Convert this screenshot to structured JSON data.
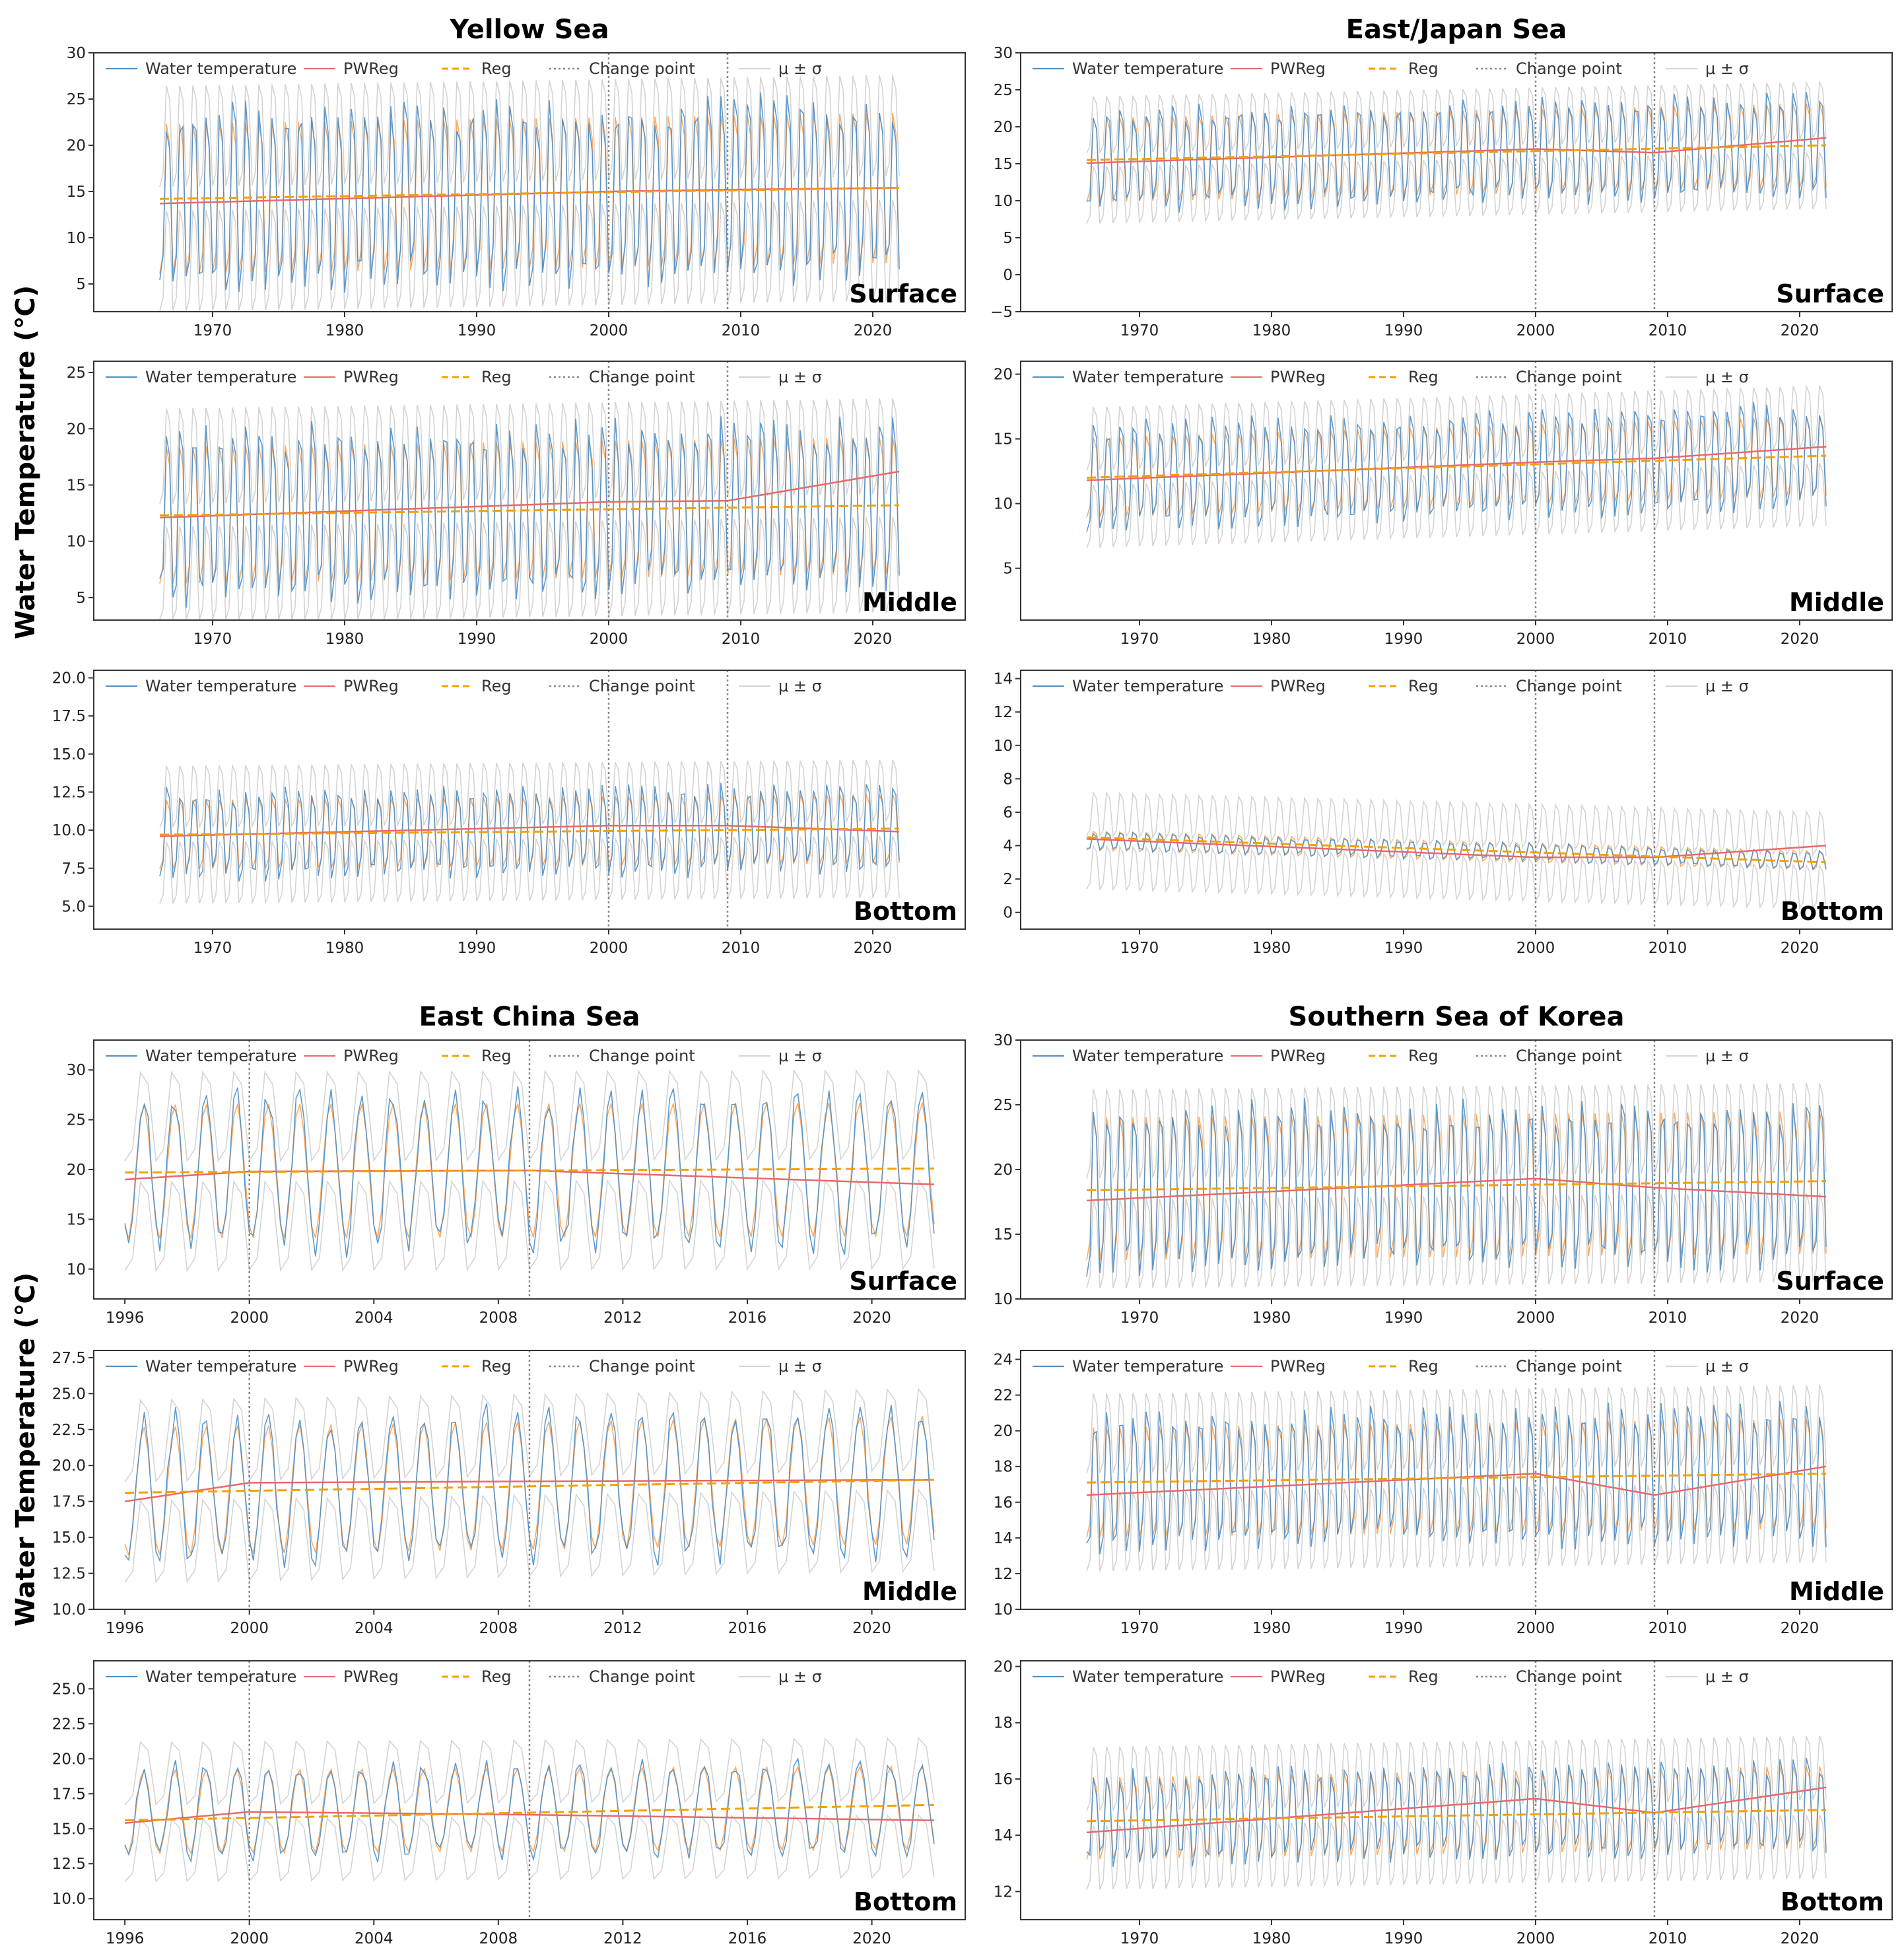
{
  "figure": {
    "ylabel": "Water Temperature (℃)",
    "legend": [
      "Water temperature",
      "PWReg",
      "Reg",
      "Change point",
      "μ ± σ"
    ],
    "colors": {
      "obs": "#4e8fc9",
      "pwreg": "#e8696a",
      "reg": "#f5a000",
      "band": "#d4d4d4",
      "fitted": "#ff9d45",
      "axis": "#333333",
      "changepoint": "#888888"
    }
  },
  "chart_data": [
    {
      "type": "line",
      "region": "Yellow Sea",
      "show_title": true,
      "depth": "Surface",
      "x_range": [
        1961,
        2027
      ],
      "ylim": [
        2,
        30
      ],
      "yticks": [
        5,
        10,
        15,
        20,
        25,
        30
      ],
      "ytick_labels": [
        "5",
        "10",
        "15",
        "20",
        "25",
        "30"
      ],
      "xticks": [
        1970,
        1980,
        1990,
        2000,
        2010,
        2020
      ],
      "xtick_labels": [
        "1970",
        "1980",
        "1990",
        "2000",
        "2010",
        "2020"
      ],
      "change_points": [
        2000,
        2009
      ],
      "series": {
        "obs": {
          "start": 1966,
          "end": 2022,
          "mean": [
            14.2,
            15.4
          ],
          "amp": 10.8,
          "step": 0.25
        },
        "fitted": {
          "mean": [
            14.2,
            15.4
          ],
          "amp": 10.0
        },
        "band": {
          "mean": [
            14.2,
            15.4
          ],
          "amp": 13.5
        },
        "reg": [
          [
            1966,
            14.2
          ],
          [
            2022,
            15.4
          ]
        ],
        "pwreg": [
          [
            1966,
            13.7
          ],
          [
            2000,
            15.0
          ],
          [
            2009,
            15.2
          ],
          [
            2022,
            15.4
          ]
        ]
      }
    },
    {
      "type": "line",
      "region": "East/Japan Sea",
      "show_title": true,
      "depth": "Surface",
      "x_range": [
        1961,
        2027
      ],
      "ylim": [
        -5,
        30
      ],
      "yticks": [
        -5,
        0,
        5,
        10,
        15,
        20,
        25,
        30
      ],
      "ytick_labels": [
        "−5",
        "0",
        "5",
        "10",
        "15",
        "20",
        "25",
        "30"
      ],
      "xticks": [
        1970,
        1980,
        1990,
        2000,
        2010,
        2020
      ],
      "xtick_labels": [
        "1970",
        "1980",
        "1990",
        "2000",
        "2010",
        "2020"
      ],
      "change_points": [
        2000,
        2009
      ],
      "series": {
        "obs": {
          "start": 1966,
          "end": 2022,
          "mean": [
            15.5,
            17.5
          ],
          "amp": 7.5,
          "step": 0.25
        },
        "fitted": {
          "mean": [
            15.5,
            17.5
          ],
          "amp": 7.0
        },
        "band": {
          "mean": [
            15.5,
            17.5
          ],
          "amp": 9.5
        },
        "reg": [
          [
            1966,
            15.5
          ],
          [
            2022,
            17.5
          ]
        ],
        "pwreg": [
          [
            1966,
            15.1
          ],
          [
            2000,
            17.0
          ],
          [
            2009,
            16.5
          ],
          [
            2022,
            18.5
          ]
        ]
      }
    },
    {
      "type": "line",
      "region": "Yellow Sea",
      "show_title": false,
      "depth": "Middle",
      "x_range": [
        1961,
        2027
      ],
      "ylim": [
        3,
        26
      ],
      "yticks": [
        5,
        10,
        15,
        20,
        25
      ],
      "ytick_labels": [
        "5",
        "10",
        "15",
        "20",
        "25"
      ],
      "xticks": [
        1970,
        1980,
        1990,
        2000,
        2010,
        2020
      ],
      "xtick_labels": [
        "1970",
        "1980",
        "1990",
        "2000",
        "2010",
        "2020"
      ],
      "change_points": [
        2000,
        2009
      ],
      "series": {
        "obs": {
          "start": 1966,
          "end": 2022,
          "mean": [
            12.3,
            13.2
          ],
          "amp": 8.5,
          "step": 0.25
        },
        "fitted": {
          "mean": [
            12.3,
            13.2
          ],
          "amp": 7.5
        },
        "band": {
          "mean": [
            12.3,
            13.2
          ],
          "amp": 10.5
        },
        "reg": [
          [
            1966,
            12.3
          ],
          [
            2022,
            13.2
          ]
        ],
        "pwreg": [
          [
            1966,
            12.1
          ],
          [
            2000,
            13.5
          ],
          [
            2009,
            13.6
          ],
          [
            2022,
            16.2
          ]
        ]
      }
    },
    {
      "type": "line",
      "region": "East/Japan Sea",
      "show_title": false,
      "depth": "Middle",
      "x_range": [
        1961,
        2027
      ],
      "ylim": [
        1,
        21
      ],
      "yticks": [
        5,
        10,
        15,
        20
      ],
      "ytick_labels": [
        "5",
        "10",
        "15",
        "20"
      ],
      "xticks": [
        1970,
        1980,
        1990,
        2000,
        2010,
        2020
      ],
      "xtick_labels": [
        "1970",
        "1980",
        "1990",
        "2000",
        "2010",
        "2020"
      ],
      "change_points": [
        2000,
        2009
      ],
      "series": {
        "obs": {
          "start": 1966,
          "end": 2022,
          "mean": [
            12.0,
            13.7
          ],
          "amp": 4.5,
          "step": 0.25
        },
        "fitted": {
          "mean": [
            12.0,
            13.7
          ],
          "amp": 3.8
        },
        "band": {
          "mean": [
            12.0,
            13.7
          ],
          "amp": 6.0
        },
        "reg": [
          [
            1966,
            12.0
          ],
          [
            2022,
            13.7
          ]
        ],
        "pwreg": [
          [
            1966,
            11.8
          ],
          [
            2000,
            13.2
          ],
          [
            2009,
            13.5
          ],
          [
            2022,
            14.4
          ]
        ]
      }
    },
    {
      "type": "line",
      "region": "Yellow Sea",
      "show_title": false,
      "depth": "Bottom",
      "x_range": [
        1961,
        2027
      ],
      "ylim": [
        3.5,
        20.5
      ],
      "yticks": [
        5,
        7.5,
        10,
        12.5,
        15,
        17.5,
        20
      ],
      "ytick_labels": [
        "5.0",
        "7.5",
        "10.0",
        "12.5",
        "15.0",
        "17.5",
        "20.0"
      ],
      "xticks": [
        1970,
        1980,
        1990,
        2000,
        2010,
        2020
      ],
      "xtick_labels": [
        "1970",
        "1980",
        "1990",
        "2000",
        "2010",
        "2020"
      ],
      "change_points": [
        2000,
        2009
      ],
      "series": {
        "obs": {
          "start": 1966,
          "end": 2022,
          "mean": [
            9.7,
            10.1
          ],
          "amp": 3.2,
          "step": 0.25
        },
        "fitted": {
          "mean": [
            9.7,
            10.1
          ],
          "amp": 2.8
        },
        "band": {
          "mean": [
            9.7,
            10.1
          ],
          "amp": 5.0
        },
        "reg": [
          [
            1966,
            9.7
          ],
          [
            2022,
            10.1
          ]
        ],
        "pwreg": [
          [
            1966,
            9.6
          ],
          [
            2000,
            10.3
          ],
          [
            2009,
            10.3
          ],
          [
            2022,
            9.9
          ]
        ]
      }
    },
    {
      "type": "line",
      "region": "East/Japan Sea",
      "show_title": false,
      "depth": "Bottom",
      "x_range": [
        1961,
        2027
      ],
      "ylim": [
        -1,
        14.5
      ],
      "yticks": [
        0,
        2,
        4,
        6,
        8,
        10,
        12,
        14
      ],
      "ytick_labels": [
        "0",
        "2",
        "4",
        "6",
        "8",
        "10",
        "12",
        "14"
      ],
      "xticks": [
        1970,
        1980,
        1990,
        2000,
        2010,
        2020
      ],
      "xtick_labels": [
        "1970",
        "1980",
        "1990",
        "2000",
        "2010",
        "2020"
      ],
      "change_points": [
        2000,
        2009
      ],
      "series": {
        "obs": {
          "start": 1966,
          "end": 2022,
          "mean": [
            4.3,
            3.1
          ],
          "amp": 0.6,
          "step": 0.25
        },
        "fitted": {
          "mean": [
            4.3,
            3.1
          ],
          "amp": 0.7
        },
        "band": {
          "mean": [
            4.3,
            3.1
          ],
          "amp": 3.2
        },
        "reg": [
          [
            1966,
            4.5
          ],
          [
            2022,
            3.0
          ]
        ],
        "pwreg": [
          [
            1966,
            4.4
          ],
          [
            2000,
            3.3
          ],
          [
            2009,
            3.3
          ],
          [
            2022,
            4.0
          ]
        ]
      }
    },
    {
      "type": "line",
      "region": "East China Sea",
      "show_title": true,
      "depth": "Surface",
      "x_range": [
        1995,
        2023
      ],
      "ylim": [
        7,
        33
      ],
      "yticks": [
        10,
        15,
        20,
        25,
        30
      ],
      "ytick_labels": [
        "10",
        "15",
        "20",
        "25",
        "30"
      ],
      "xticks": [
        1996,
        2000,
        2004,
        2008,
        2012,
        2016,
        2020
      ],
      "xtick_labels": [
        "1996",
        "2000",
        "2004",
        "2008",
        "2012",
        "2016",
        "2020"
      ],
      "change_points": [
        2000,
        2009
      ],
      "series": {
        "obs": {
          "start": 1996,
          "end": 2022,
          "mean": [
            19.8,
            20.0
          ],
          "amp": 7.5,
          "step": 0.125
        },
        "fitted": {
          "mean": [
            19.8,
            20.0
          ],
          "amp": 6.8
        },
        "band": {
          "mean": [
            19.8,
            20.0
          ],
          "amp": 11.0
        },
        "reg": [
          [
            1996,
            19.7
          ],
          [
            2022,
            20.1
          ]
        ],
        "pwreg": [
          [
            1996,
            19.0
          ],
          [
            2000,
            19.8
          ],
          [
            2009,
            19.9
          ],
          [
            2022,
            18.5
          ]
        ]
      }
    },
    {
      "type": "line",
      "region": "Southern Sea of Korea",
      "show_title": true,
      "depth": "Surface",
      "x_range": [
        1961,
        2027
      ],
      "ylim": [
        10,
        30
      ],
      "yticks": [
        10,
        15,
        20,
        25,
        30
      ],
      "ytick_labels": [
        "10",
        "15",
        "20",
        "25",
        "30"
      ],
      "xticks": [
        1970,
        1980,
        1990,
        2000,
        2010,
        2020
      ],
      "xtick_labels": [
        "1970",
        "1980",
        "1990",
        "2000",
        "2010",
        "2020"
      ],
      "change_points": [
        2000,
        2009
      ],
      "series": {
        "obs": {
          "start": 1966,
          "end": 2022,
          "mean": [
            18.5,
            19.0
          ],
          "amp": 7.0,
          "step": 0.25
        },
        "fitted": {
          "mean": [
            18.5,
            19.0
          ],
          "amp": 6.8
        },
        "band": {
          "mean": [
            18.5,
            19.0
          ],
          "amp": 8.5
        },
        "reg": [
          [
            1966,
            18.4
          ],
          [
            2022,
            19.1
          ]
        ],
        "pwreg": [
          [
            1966,
            17.6
          ],
          [
            2000,
            19.3
          ],
          [
            2009,
            18.6
          ],
          [
            2022,
            17.9
          ]
        ]
      }
    },
    {
      "type": "line",
      "region": "East China Sea",
      "show_title": false,
      "depth": "Middle",
      "x_range": [
        1995,
        2023
      ],
      "ylim": [
        10,
        28
      ],
      "yticks": [
        10,
        12.5,
        15,
        17.5,
        20,
        22.5,
        25,
        27.5
      ],
      "ytick_labels": [
        "10.0",
        "12.5",
        "15.0",
        "17.5",
        "20.0",
        "22.5",
        "25.0",
        "27.5"
      ],
      "xticks": [
        1996,
        2000,
        2004,
        2008,
        2012,
        2016,
        2020
      ],
      "xtick_labels": [
        "1996",
        "2000",
        "2004",
        "2008",
        "2012",
        "2016",
        "2020"
      ],
      "change_points": [
        2000,
        2009
      ],
      "series": {
        "obs": {
          "start": 1996,
          "end": 2022,
          "mean": [
            18.2,
            19.0
          ],
          "amp": 5.0,
          "step": 0.125
        },
        "fitted": {
          "mean": [
            18.2,
            19.0
          ],
          "amp": 4.5
        },
        "band": {
          "mean": [
            18.2,
            19.0
          ],
          "amp": 7.0
        },
        "reg": [
          [
            1996,
            18.1
          ],
          [
            2022,
            19.0
          ]
        ],
        "pwreg": [
          [
            1996,
            17.5
          ],
          [
            2000,
            18.8
          ],
          [
            2009,
            18.9
          ],
          [
            2022,
            19.0
          ]
        ]
      }
    },
    {
      "type": "line",
      "region": "Southern Sea of Korea",
      "show_title": false,
      "depth": "Middle",
      "x_range": [
        1961,
        2027
      ],
      "ylim": [
        10,
        24.5
      ],
      "yticks": [
        10,
        12,
        14,
        16,
        18,
        20,
        22,
        24
      ],
      "ytick_labels": [
        "10",
        "12",
        "14",
        "16",
        "18",
        "20",
        "22",
        "24"
      ],
      "xticks": [
        1970,
        1980,
        1990,
        2000,
        2010,
        2020
      ],
      "xtick_labels": [
        "1970",
        "1980",
        "1990",
        "2000",
        "2010",
        "2020"
      ],
      "change_points": [
        2000,
        2009
      ],
      "series": {
        "obs": {
          "start": 1966,
          "end": 2022,
          "mean": [
            17.1,
            17.6
          ],
          "amp": 4.2,
          "step": 0.25
        },
        "fitted": {
          "mean": [
            17.1,
            17.6
          ],
          "amp": 3.8
        },
        "band": {
          "mean": [
            17.1,
            17.6
          ],
          "amp": 5.5
        },
        "reg": [
          [
            1966,
            17.1
          ],
          [
            2022,
            17.6
          ]
        ],
        "pwreg": [
          [
            1966,
            16.4
          ],
          [
            2000,
            17.6
          ],
          [
            2009,
            16.4
          ],
          [
            2022,
            18.0
          ]
        ]
      }
    },
    {
      "type": "line",
      "region": "East China Sea",
      "show_title": false,
      "depth": "Bottom",
      "x_range": [
        1995,
        2023
      ],
      "ylim": [
        8.5,
        27
      ],
      "yticks": [
        10,
        12.5,
        15,
        17.5,
        20,
        22.5,
        25
      ],
      "ytick_labels": [
        "10.0",
        "12.5",
        "15.0",
        "17.5",
        "20.0",
        "22.5",
        "25.0"
      ],
      "xticks": [
        1996,
        2000,
        2004,
        2008,
        2012,
        2016,
        2020
      ],
      "xtick_labels": [
        "1996",
        "2000",
        "2004",
        "2008",
        "2012",
        "2016",
        "2020"
      ],
      "change_points": [
        2000,
        2009
      ],
      "series": {
        "obs": {
          "start": 1996,
          "end": 2022,
          "mean": [
            16.2,
            16.5
          ],
          "amp": 3.2,
          "step": 0.125
        },
        "fitted": {
          "mean": [
            16.2,
            16.5
          ],
          "amp": 3.0
        },
        "band": {
          "mean": [
            16.2,
            16.5
          ],
          "amp": 5.5
        },
        "reg": [
          [
            1996,
            15.6
          ],
          [
            2022,
            16.7
          ]
        ],
        "pwreg": [
          [
            1996,
            15.4
          ],
          [
            2000,
            16.2
          ],
          [
            2009,
            16.0
          ],
          [
            2022,
            15.6
          ]
        ]
      }
    },
    {
      "type": "line",
      "region": "Southern Sea of Korea",
      "show_title": false,
      "depth": "Bottom",
      "x_range": [
        1961,
        2027
      ],
      "ylim": [
        11,
        20.2
      ],
      "yticks": [
        12,
        14,
        16,
        18,
        20
      ],
      "ytick_labels": [
        "12",
        "14",
        "16",
        "18",
        "20"
      ],
      "xticks": [
        1970,
        1980,
        1990,
        2000,
        2010,
        2020
      ],
      "xtick_labels": [
        "1970",
        "1980",
        "1990",
        "2000",
        "2010",
        "2020"
      ],
      "change_points": [
        2000,
        2009
      ],
      "series": {
        "obs": {
          "start": 1966,
          "end": 2022,
          "mean": [
            14.6,
            15.0
          ],
          "amp": 1.8,
          "step": 0.25
        },
        "fitted": {
          "mean": [
            14.6,
            15.0
          ],
          "amp": 1.8
        },
        "band": {
          "mean": [
            14.6,
            15.0
          ],
          "amp": 2.8
        },
        "reg": [
          [
            1966,
            14.5
          ],
          [
            2022,
            14.9
          ]
        ],
        "pwreg": [
          [
            1966,
            14.1
          ],
          [
            2000,
            15.3
          ],
          [
            2009,
            14.8
          ],
          [
            2022,
            15.7
          ]
        ]
      }
    }
  ]
}
